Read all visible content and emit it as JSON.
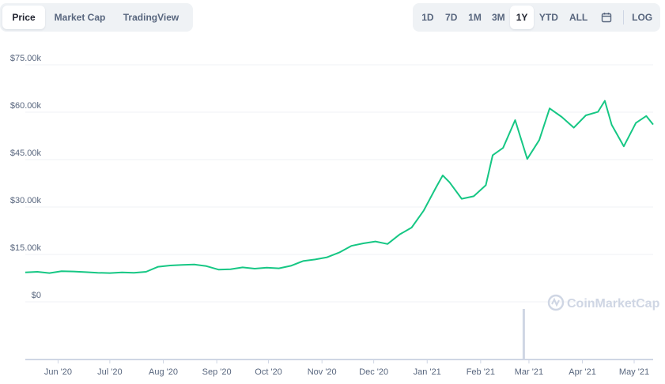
{
  "tabs": {
    "price": "Price",
    "market_cap": "Market Cap",
    "trading_view": "TradingView"
  },
  "range_buttons": [
    "1D",
    "7D",
    "1M",
    "3M",
    "1Y",
    "YTD",
    "ALL"
  ],
  "active_range": "1Y",
  "log_label": "LOG",
  "watermark": "CoinMarketCap",
  "colors": {
    "line": "#16c784",
    "grid": "#eff2f5",
    "volume": "#cfd6e4",
    "text": "#58667e"
  },
  "chart_data": {
    "type": "line",
    "title": "",
    "xlabel": "",
    "ylabel": "",
    "y_tick_labels": [
      "$0",
      "$15.00k",
      "$30.00k",
      "$45.00k",
      "$60.00k",
      "$75.00k"
    ],
    "y_ticks": [
      0,
      15000,
      30000,
      45000,
      60000,
      75000
    ],
    "ylim": [
      0,
      75000
    ],
    "x_tick_labels": [
      "Jun '20",
      "Jul '20",
      "Aug '20",
      "Sep '20",
      "Oct '20",
      "Nov '20",
      "Dec '20",
      "Jan '21",
      "Feb '21",
      "Mar '21",
      "Apr '21",
      "May '21"
    ],
    "x_range": [
      "2020-05-13",
      "2021-05-12"
    ],
    "grid": true,
    "series": [
      {
        "x": [
          "2020-05-13",
          "2020-05-20",
          "2020-05-27",
          "2020-06-03",
          "2020-06-10",
          "2020-06-17",
          "2020-06-24",
          "2020-07-01",
          "2020-07-08",
          "2020-07-15",
          "2020-07-22",
          "2020-07-29",
          "2020-08-05",
          "2020-08-12",
          "2020-08-19",
          "2020-08-26",
          "2020-09-02",
          "2020-09-09",
          "2020-09-16",
          "2020-09-23",
          "2020-09-30",
          "2020-10-07",
          "2020-10-14",
          "2020-10-21",
          "2020-10-28",
          "2020-11-04",
          "2020-11-11",
          "2020-11-18",
          "2020-11-25",
          "2020-12-02",
          "2020-12-09",
          "2020-12-16",
          "2020-12-23",
          "2020-12-30",
          "2021-01-06",
          "2021-01-10",
          "2021-01-14",
          "2021-01-21",
          "2021-01-28",
          "2021-02-04",
          "2021-02-08",
          "2021-02-14",
          "2021-02-21",
          "2021-02-28",
          "2021-03-07",
          "2021-03-13",
          "2021-03-20",
          "2021-03-27",
          "2021-04-03",
          "2021-04-10",
          "2021-04-14",
          "2021-04-18",
          "2021-04-25",
          "2021-05-02",
          "2021-05-08",
          "2021-05-12"
        ],
        "y": [
          9300,
          9500,
          9100,
          9700,
          9600,
          9400,
          9200,
          9100,
          9300,
          9200,
          9500,
          11100,
          11500,
          11700,
          11800,
          11300,
          10200,
          10300,
          10900,
          10500,
          10800,
          10600,
          11400,
          12900,
          13400,
          14100,
          15600,
          17700,
          18500,
          19100,
          18300,
          21300,
          23500,
          28900,
          36100,
          40000,
          37800,
          32600,
          33400,
          36900,
          46400,
          48700,
          57500,
          45200,
          51200,
          61200,
          58500,
          55100,
          59000,
          60100,
          63600,
          56000,
          49200,
          56600,
          58800,
          56100
        ]
      }
    ],
    "volume": {
      "x": [
        "2021-02-26"
      ],
      "note_spike_relative": 1.0
    }
  }
}
